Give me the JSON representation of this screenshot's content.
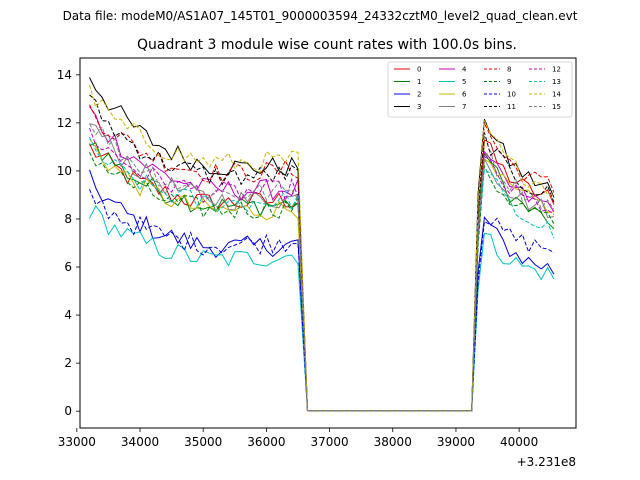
{
  "chart_data": {
    "type": "line",
    "suptitle": "Data file: modeM0/AS1A07_145T01_9000003594_24332cztM0_level2_quad_clean.evt",
    "title": "Quadrant 3 module wise count rates with 100.0s bins.",
    "xlabel": "",
    "ylabel": "",
    "x_offset_label": "+3.231e8",
    "xlim": [
      33050,
      40900
    ],
    "ylim": [
      -0.7,
      14.7
    ],
    "x_ticks": [
      33000,
      34000,
      35000,
      36000,
      37000,
      38000,
      39000,
      40000
    ],
    "y_ticks": [
      0,
      2,
      4,
      6,
      8,
      10,
      12,
      14
    ],
    "legend_position": "top-right",
    "segments": [
      {
        "x_start": 33200,
        "x_end": 36550,
        "dt": 100
      },
      {
        "x_start": 36650,
        "x_end": 39250,
        "dt": 100,
        "note": "gap, zero counts"
      },
      {
        "x_start": 39350,
        "x_end": 40550,
        "dt": 100
      }
    ],
    "series": [
      {
        "name": "0",
        "color": "#e00000",
        "dash": false,
        "start": 11.0,
        "mid": 8.2,
        "peak": 11.3,
        "end": 8.6
      },
      {
        "name": "1",
        "color": "#008000",
        "dash": false,
        "start": 11.4,
        "mid": 8.0,
        "peak": 11.0,
        "end": 7.6
      },
      {
        "name": "2",
        "color": "#0000e0",
        "dash": false,
        "start": 9.6,
        "mid": 6.3,
        "peak": 8.1,
        "end": 5.7
      },
      {
        "name": "3",
        "color": "#000000",
        "dash": false,
        "start": 14.0,
        "mid": 9.5,
        "peak": 12.4,
        "end": 8.9
      },
      {
        "name": "4",
        "color": "#c000c0",
        "dash": false,
        "start": 12.5,
        "mid": 8.6,
        "peak": 10.8,
        "end": 8.3
      },
      {
        "name": "5",
        "color": "#00c0c0",
        "dash": false,
        "start": 8.4,
        "mid": 5.9,
        "peak": 7.4,
        "end": 5.5
      },
      {
        "name": "6",
        "color": "#c8b400",
        "dash": false,
        "start": 11.2,
        "mid": 7.8,
        "peak": 10.5,
        "end": 8.3
      },
      {
        "name": "7",
        "color": "#808080",
        "dash": false,
        "start": 12.1,
        "mid": 8.2,
        "peak": 10.7,
        "end": 8.1
      },
      {
        "name": "8",
        "color": "#e00000",
        "dash": true,
        "start": 12.6,
        "mid": 9.4,
        "peak": 12.0,
        "end": 9.1
      },
      {
        "name": "9",
        "color": "#008000",
        "dash": true,
        "start": 10.8,
        "mid": 7.9,
        "peak": 10.2,
        "end": 7.8
      },
      {
        "name": "10",
        "color": "#0000e0",
        "dash": true,
        "start": 9.0,
        "mid": 6.5,
        "peak": 8.2,
        "end": 6.6
      },
      {
        "name": "11",
        "color": "#000000",
        "dash": true,
        "start": 12.9,
        "mid": 9.2,
        "peak": 11.6,
        "end": 8.7
      },
      {
        "name": "12",
        "color": "#c000c0",
        "dash": true,
        "start": 11.6,
        "mid": 8.6,
        "peak": 10.6,
        "end": 8.2
      },
      {
        "name": "13",
        "color": "#00c0c0",
        "dash": true,
        "start": 11.0,
        "mid": 8.2,
        "peak": 10.4,
        "end": 7.2
      },
      {
        "name": "14",
        "color": "#c8b400",
        "dash": true,
        "start": 13.2,
        "mid": 9.8,
        "peak": 12.1,
        "end": 9.0
      },
      {
        "name": "15",
        "color": "#808080",
        "dash": true,
        "start": 12.2,
        "mid": 8.5,
        "peak": 11.0,
        "end": 8.4
      }
    ]
  }
}
